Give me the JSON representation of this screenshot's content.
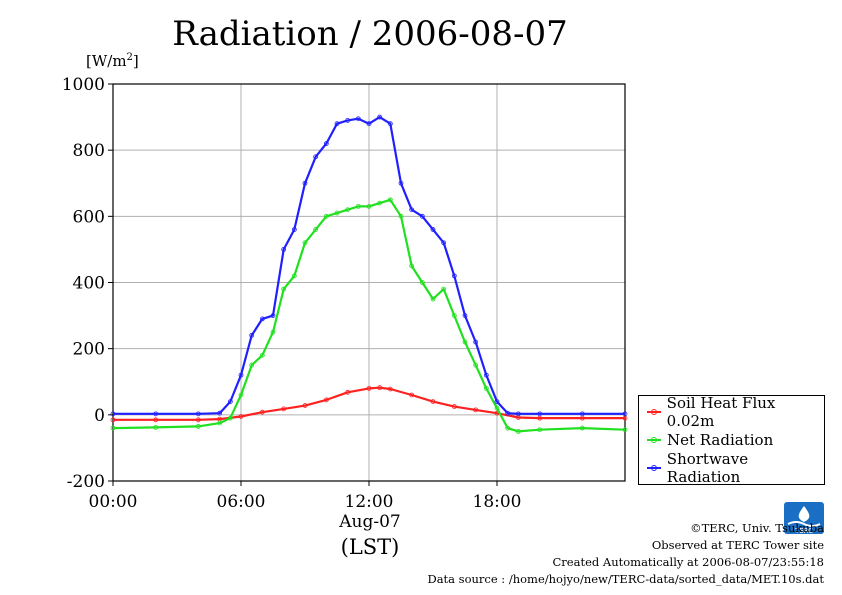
{
  "title": "Radiation / 2006-08-07",
  "unit_label": "[W/m",
  "unit_sup": "2",
  "unit_close": "]",
  "x_date_label": "Aug-07",
  "x_tz_label": "(LST)",
  "credits": {
    "line1": "©TERC, Univ. Tsukuba",
    "line2": "Observed at TERC Tower site",
    "line3": "Created Automatically at 2006-08-07/23:55:18",
    "line4": "Data source : /home/hojyo/new/TERC-data/sorted_data/MET.10s.dat"
  },
  "logo_text": "TERC",
  "chart_data": {
    "type": "line",
    "title": "Radiation / 2006-08-07",
    "xlabel": "Aug-07 (LST)",
    "ylabel": "[W/m2]",
    "xlim": [
      0,
      24
    ],
    "ylim": [
      -200,
      1000
    ],
    "x_ticks": [
      {
        "value": 0,
        "label": "00:00"
      },
      {
        "value": 6,
        "label": "06:00"
      },
      {
        "value": 12,
        "label": "12:00"
      },
      {
        "value": 18,
        "label": "18:00"
      }
    ],
    "y_ticks": [
      -200,
      0,
      200,
      400,
      600,
      800,
      1000
    ],
    "grid": true,
    "legend_position": "right, lower",
    "series": [
      {
        "name": "Soil Heat Flux 0.02m",
        "color": "#ff2020",
        "x": [
          0,
          2,
          4,
          5,
          6,
          7,
          8,
          9,
          10,
          11,
          12,
          12.5,
          13,
          14,
          15,
          16,
          17,
          18,
          19,
          20,
          22,
          24
        ],
        "y": [
          -15,
          -15,
          -15,
          -13,
          -5,
          8,
          18,
          28,
          45,
          68,
          80,
          82,
          78,
          60,
          40,
          25,
          15,
          5,
          -8,
          -10,
          -10,
          -10
        ]
      },
      {
        "name": "Net Radiation",
        "color": "#20e020",
        "x": [
          0,
          2,
          4,
          5,
          5.5,
          6,
          6.5,
          7,
          7.5,
          8,
          8.5,
          9,
          9.5,
          10,
          10.5,
          11,
          11.5,
          12,
          12.5,
          13,
          13.5,
          14,
          14.5,
          15,
          15.5,
          16,
          16.5,
          17,
          17.5,
          18,
          18.5,
          19,
          20,
          22,
          24
        ],
        "y": [
          -40,
          -38,
          -35,
          -25,
          -10,
          60,
          150,
          180,
          250,
          380,
          420,
          520,
          560,
          600,
          610,
          620,
          630,
          630,
          640,
          650,
          600,
          450,
          400,
          350,
          380,
          300,
          220,
          150,
          80,
          20,
          -40,
          -50,
          -45,
          -40,
          -45
        ]
      },
      {
        "name": "Shortwave Radiation",
        "color": "#2020ff",
        "x": [
          0,
          2,
          4,
          5,
          5.5,
          6,
          6.5,
          7,
          7.5,
          8,
          8.5,
          9,
          9.5,
          10,
          10.5,
          11,
          11.5,
          12,
          12.5,
          13,
          13.5,
          14,
          14.5,
          15,
          15.5,
          16,
          16.5,
          17,
          17.5,
          18,
          18.5,
          19,
          20,
          22,
          24
        ],
        "y": [
          3,
          3,
          3,
          5,
          40,
          120,
          240,
          290,
          300,
          500,
          560,
          700,
          780,
          820,
          880,
          890,
          895,
          880,
          900,
          880,
          700,
          620,
          600,
          560,
          520,
          420,
          300,
          220,
          120,
          40,
          5,
          3,
          3,
          3,
          3
        ]
      }
    ]
  }
}
